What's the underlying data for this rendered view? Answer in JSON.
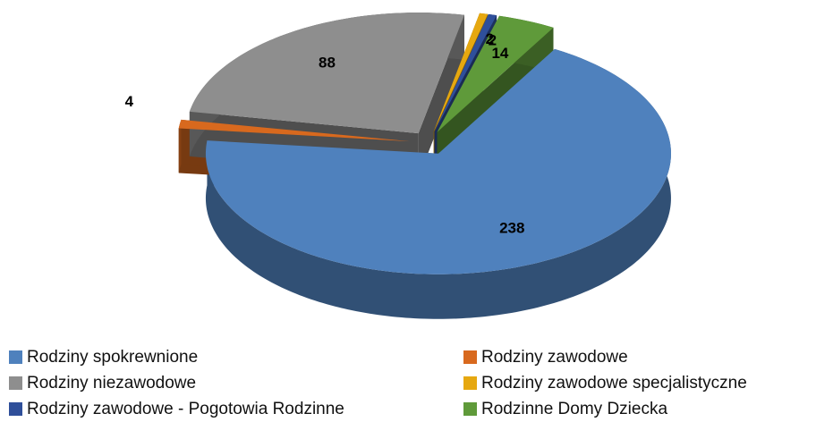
{
  "chart_data": {
    "type": "pie",
    "categories": [
      "Rodziny spokrewnione",
      "Rodziny zawodowe",
      "Rodziny niezawodowe",
      "Rodziny zawodowe specjalistyczne",
      "Rodziny zawodowe - Pogotowia Rodzinne",
      "Rodzinne Domy Dziecka"
    ],
    "values": [
      238,
      4,
      88,
      2,
      2,
      14
    ],
    "colors": [
      "#4f81bd",
      "#d8691e",
      "#8e8e8e",
      "#e6a810",
      "#2f4f9a",
      "#5f9a3a"
    ]
  }
}
